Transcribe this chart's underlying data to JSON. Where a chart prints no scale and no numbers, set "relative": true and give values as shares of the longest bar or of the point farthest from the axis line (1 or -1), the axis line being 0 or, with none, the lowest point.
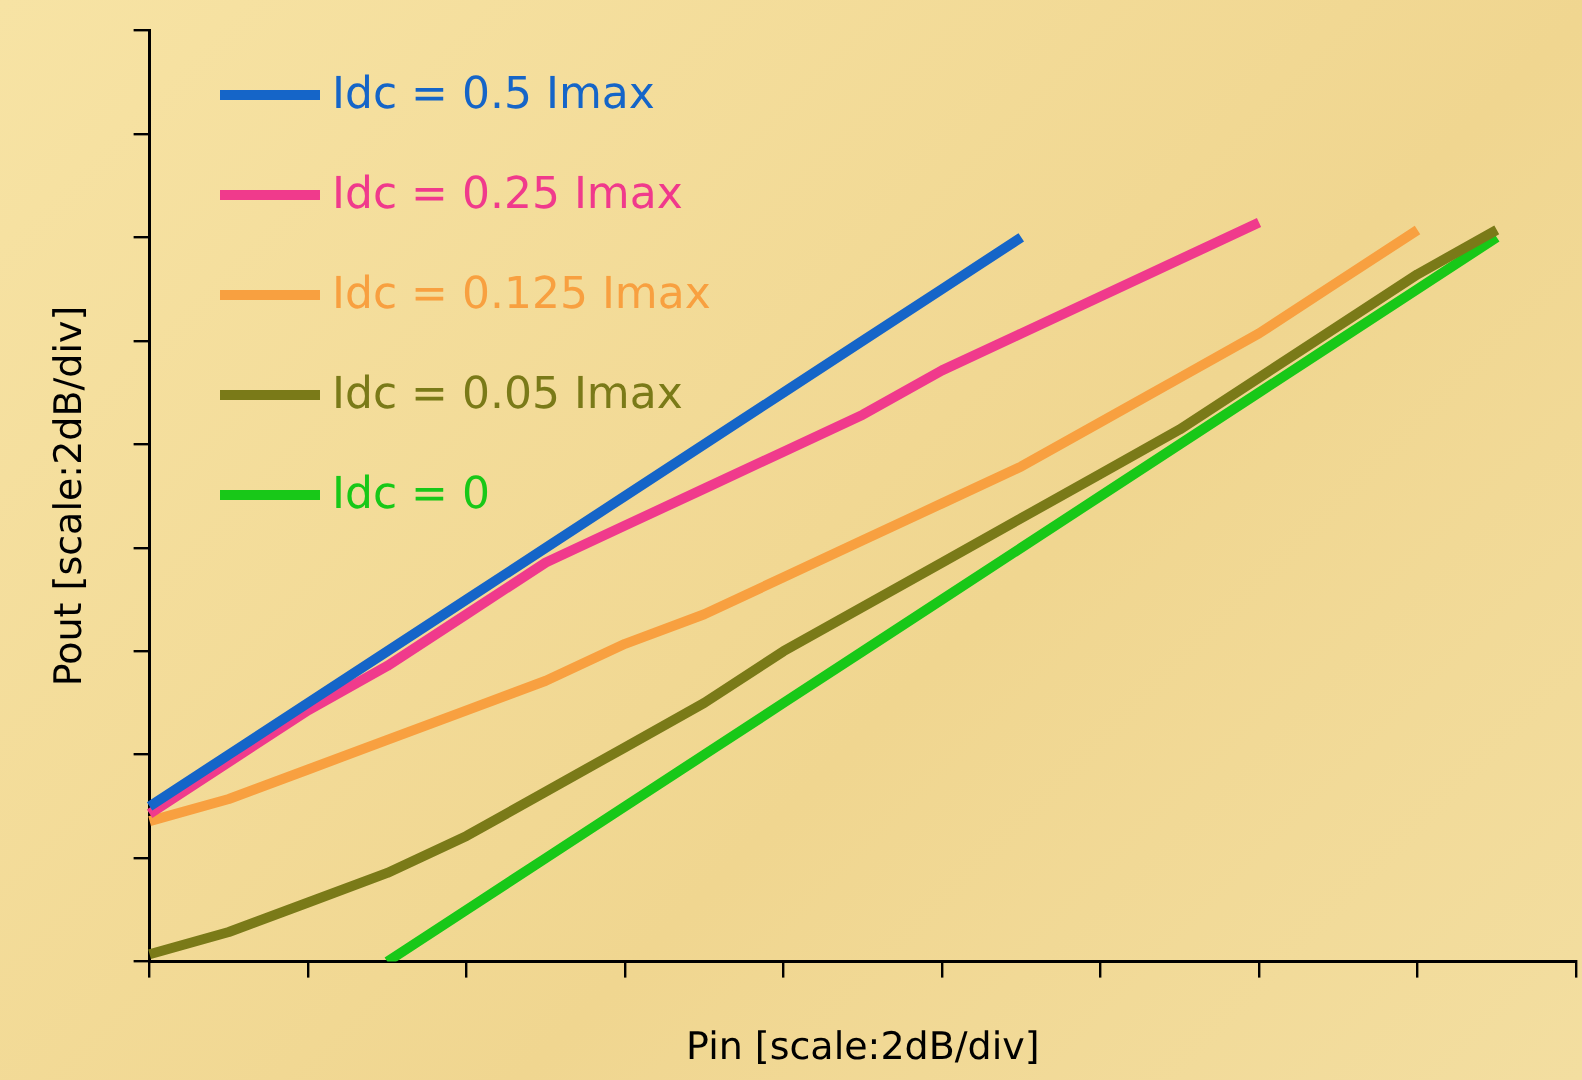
{
  "chart_data": {
    "type": "line",
    "xlabel": "Pin [scale:2dB/div]",
    "ylabel": "Pout [scale:2dB/div]",
    "relative": true,
    "grid": false,
    "legend": "top left",
    "marker": "none",
    "line_style": "solid",
    "categories": [
      null,
      null,
      null,
      null,
      null,
      null,
      null,
      null,
      null,
      null,
      null,
      null,
      null,
      null,
      null,
      null,
      null,
      null,
      null
    ],
    "series": [
      {
        "name": "Idc = 0.5 Imax",
        "color": "#1565c8",
        "values": [
          0.21,
          0.28,
          0.35,
          0.42,
          0.49,
          0.56,
          0.63,
          0.7,
          0.77,
          0.84,
          0.91,
          0.98,
          null,
          null,
          null,
          null,
          null,
          null,
          null
        ]
      },
      {
        "name": "Idc = 0.25 Imax",
        "color": "#f03a8c",
        "values": [
          0.2,
          0.27,
          0.34,
          0.4,
          0.47,
          0.54,
          0.59,
          0.64,
          0.69,
          0.74,
          0.8,
          0.85,
          0.9,
          0.95,
          1.0,
          null,
          null,
          null,
          null
        ]
      },
      {
        "name": "Idc = 0.125 Imax",
        "color": "#f8a040",
        "values": [
          0.19,
          0.22,
          0.26,
          0.3,
          0.34,
          0.38,
          0.43,
          0.47,
          0.52,
          0.57,
          0.62,
          0.67,
          0.73,
          0.79,
          0.85,
          0.92,
          0.99,
          null,
          null
        ]
      },
      {
        "name": "Idc = 0.05 Imax",
        "color": "#7a7a18",
        "values": [
          0.01,
          0.04,
          0.08,
          0.12,
          0.17,
          0.23,
          0.29,
          0.35,
          0.42,
          0.48,
          0.54,
          0.6,
          0.66,
          0.72,
          0.79,
          0.86,
          0.93,
          0.99,
          null
        ]
      },
      {
        "name": "Idc = 0",
        "color": "#18c818",
        "values": [
          null,
          null,
          null,
          0.0,
          0.07,
          0.14,
          0.21,
          0.28,
          0.35,
          0.42,
          0.49,
          0.56,
          0.63,
          0.7,
          0.77,
          0.84,
          0.91,
          0.98,
          null
        ]
      }
    ]
  }
}
